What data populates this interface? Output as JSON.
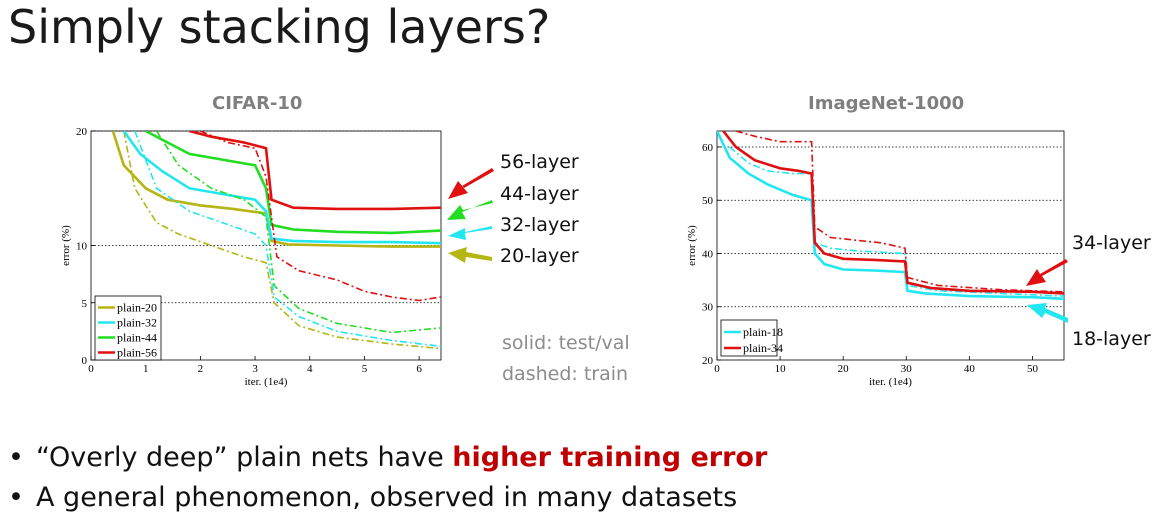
{
  "slide": {
    "title": "Simply stacking layers?",
    "bullets": [
      {
        "pre": "“Overly deep” plain nets have ",
        "highlight": "higher training error",
        "post": ""
      },
      {
        "pre": "A general phenomenon, observed in many datasets",
        "highlight": "",
        "post": ""
      }
    ],
    "note_line1": "solid: test/val",
    "note_line2": "dashed: train",
    "cifar_callouts": [
      "56-layer",
      "44-layer",
      "32-layer",
      "20-layer"
    ],
    "imagenet_callouts": [
      "34-layer",
      "18-layer"
    ]
  },
  "colors": {
    "plain20": "#b5b514",
    "plain32": "#22e6f0",
    "plain44": "#22dd22",
    "plain56": "#e01010",
    "highlight": "#c00000"
  },
  "chart_data": [
    {
      "type": "line",
      "title": "CIFAR-10",
      "xlabel": "iter. (1e4)",
      "ylabel": "error (%)",
      "xlim": [
        0,
        6.4
      ],
      "ylim": [
        0,
        20
      ],
      "xticks": [
        "0",
        "1",
        "2",
        "3",
        "4",
        "5",
        "6"
      ],
      "yticks": [
        "0",
        "5",
        "10",
        "20"
      ],
      "grid_y": [
        5,
        10,
        20
      ],
      "legend_position": "bottom-left",
      "series": [
        {
          "name": "plain-20",
          "color_key": "plain20",
          "test": [
            [
              0.4,
              20
            ],
            [
              0.6,
              17
            ],
            [
              1.0,
              15
            ],
            [
              1.4,
              14
            ],
            [
              2.0,
              13.5
            ],
            [
              2.6,
              13.2
            ],
            [
              3.2,
              12.8
            ],
            [
              3.3,
              10.4
            ],
            [
              3.6,
              10.1
            ],
            [
              4.5,
              10
            ],
            [
              5.5,
              9.9
            ],
            [
              6.4,
              9.9
            ]
          ],
          "train": [
            [
              0.6,
              20
            ],
            [
              0.8,
              15
            ],
            [
              1.2,
              12
            ],
            [
              1.6,
              11
            ],
            [
              2.2,
              10
            ],
            [
              2.8,
              9
            ],
            [
              3.2,
              8.5
            ],
            [
              3.35,
              5
            ],
            [
              3.8,
              3
            ],
            [
              4.5,
              2
            ],
            [
              5.5,
              1.4
            ],
            [
              6.4,
              1.0
            ]
          ]
        },
        {
          "name": "plain-32",
          "color_key": "plain32",
          "test": [
            [
              0.6,
              20
            ],
            [
              0.9,
              18
            ],
            [
              1.3,
              16.5
            ],
            [
              1.8,
              15
            ],
            [
              2.4,
              14.5
            ],
            [
              3.0,
              14
            ],
            [
              3.2,
              13
            ],
            [
              3.3,
              10.6
            ],
            [
              3.7,
              10.4
            ],
            [
              4.5,
              10.3
            ],
            [
              5.5,
              10.3
            ],
            [
              6.4,
              10.2
            ]
          ],
          "train": [
            [
              0.8,
              20
            ],
            [
              1.2,
              15
            ],
            [
              1.8,
              13
            ],
            [
              2.4,
              12
            ],
            [
              3.0,
              11
            ],
            [
              3.2,
              10
            ],
            [
              3.35,
              5.5
            ],
            [
              3.8,
              3.8
            ],
            [
              4.5,
              2.5
            ],
            [
              5.5,
              1.7
            ],
            [
              6.4,
              1.2
            ]
          ]
        },
        {
          "name": "plain-44",
          "color_key": "plain44",
          "test": [
            [
              1.0,
              20
            ],
            [
              1.4,
              19
            ],
            [
              1.8,
              18
            ],
            [
              2.4,
              17.5
            ],
            [
              3.0,
              17
            ],
            [
              3.2,
              15
            ],
            [
              3.3,
              11.8
            ],
            [
              3.7,
              11.4
            ],
            [
              4.5,
              11.2
            ],
            [
              5.5,
              11.1
            ],
            [
              6.4,
              11.3
            ]
          ],
          "train": [
            [
              1.2,
              20
            ],
            [
              1.6,
              17
            ],
            [
              2.2,
              15
            ],
            [
              2.8,
              14
            ],
            [
              3.2,
              12.5
            ],
            [
              3.35,
              6.5
            ],
            [
              3.8,
              4.5
            ],
            [
              4.5,
              3.2
            ],
            [
              5.5,
              2.4
            ],
            [
              6.4,
              2.8
            ]
          ]
        },
        {
          "name": "plain-56",
          "color_key": "plain56",
          "test": [
            [
              1.8,
              20
            ],
            [
              2.2,
              19.5
            ],
            [
              2.8,
              19
            ],
            [
              3.2,
              18.5
            ],
            [
              3.3,
              14
            ],
            [
              3.7,
              13.3
            ],
            [
              4.5,
              13.2
            ],
            [
              5.5,
              13.2
            ],
            [
              6.4,
              13.3
            ]
          ],
          "train": [
            [
              2.0,
              20
            ],
            [
              2.5,
              19
            ],
            [
              3.0,
              18.5
            ],
            [
              3.2,
              16
            ],
            [
              3.4,
              9
            ],
            [
              3.8,
              7.8
            ],
            [
              4.5,
              7
            ],
            [
              5.0,
              6
            ],
            [
              5.5,
              5.5
            ],
            [
              6.0,
              5.2
            ],
            [
              6.4,
              5.5
            ]
          ]
        }
      ]
    },
    {
      "type": "line",
      "title": "ImageNet-1000",
      "xlabel": "iter. (1e4)",
      "ylabel": "error (%)",
      "xlim": [
        0,
        55
      ],
      "ylim": [
        20,
        63
      ],
      "xticks": [
        "0",
        "10",
        "20",
        "30",
        "40",
        "50"
      ],
      "yticks": [
        "20",
        "30",
        "40",
        "50",
        "60"
      ],
      "grid_y": [
        30,
        40,
        50,
        60
      ],
      "legend_position": "bottom-left",
      "series": [
        {
          "name": "plain-18",
          "color_key": "plain18",
          "test": [
            [
              0,
              63
            ],
            [
              2,
              58
            ],
            [
              5,
              55
            ],
            [
              8,
              53
            ],
            [
              12,
              51
            ],
            [
              15,
              50
            ],
            [
              15.5,
              40
            ],
            [
              17,
              38
            ],
            [
              20,
              37
            ],
            [
              25,
              36.8
            ],
            [
              29.8,
              36.5
            ],
            [
              30.2,
              33
            ],
            [
              33,
              32.5
            ],
            [
              40,
              32
            ],
            [
              50,
              31.8
            ],
            [
              55,
              31.5
            ]
          ],
          "train": [
            [
              2,
              60
            ],
            [
              5,
              57
            ],
            [
              8,
              55.5
            ],
            [
              12,
              55
            ],
            [
              15,
              55
            ],
            [
              15.5,
              42
            ],
            [
              18,
              41
            ],
            [
              22,
              40.5
            ],
            [
              29.8,
              40
            ],
            [
              30.2,
              34
            ],
            [
              35,
              33
            ],
            [
              45,
              32.5
            ],
            [
              55,
              32
            ]
          ]
        },
        {
          "name": "plain-34",
          "color_key": "plain34",
          "test": [
            [
              1,
              63
            ],
            [
              3,
              60
            ],
            [
              6,
              57.5
            ],
            [
              10,
              56
            ],
            [
              13,
              55.5
            ],
            [
              15,
              55
            ],
            [
              15.5,
              42
            ],
            [
              17,
              40
            ],
            [
              20,
              39
            ],
            [
              25,
              38.8
            ],
            [
              29.8,
              38.5
            ],
            [
              30.2,
              34.5
            ],
            [
              34,
              33.5
            ],
            [
              40,
              33
            ],
            [
              50,
              32.8
            ],
            [
              55,
              32.5
            ]
          ],
          "train": [
            [
              3,
              63
            ],
            [
              6,
              62
            ],
            [
              10,
              61
            ],
            [
              15,
              61
            ],
            [
              15.5,
              45
            ],
            [
              18,
              43
            ],
            [
              22,
              42.5
            ],
            [
              26,
              42
            ],
            [
              29.8,
              41
            ],
            [
              30.2,
              35.5
            ],
            [
              35,
              34
            ],
            [
              45,
              33.2
            ],
            [
              55,
              32.8
            ]
          ]
        }
      ]
    }
  ]
}
